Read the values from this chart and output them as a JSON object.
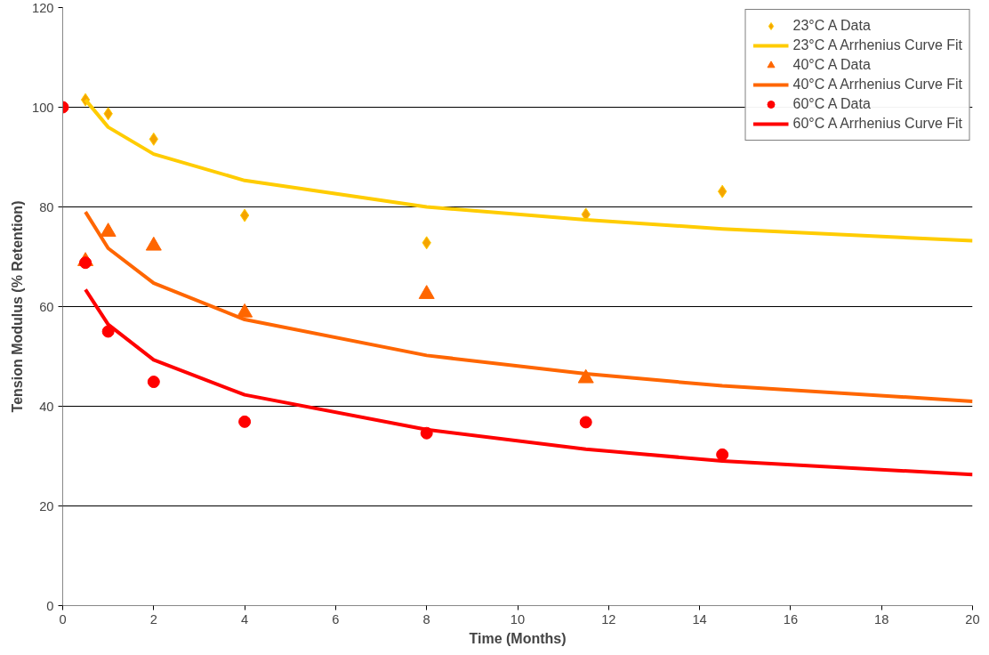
{
  "chart_data": {
    "type": "scatter",
    "xlabel": "Time (Months)",
    "ylabel": "Tension Modulus (% Retention)",
    "xlim": [
      0,
      20
    ],
    "xticks": [
      0,
      2,
      4,
      6,
      8,
      10,
      12,
      14,
      16,
      18,
      20
    ],
    "ylim": [
      0,
      120
    ],
    "yticks": [
      0,
      20,
      40,
      60,
      80,
      100,
      120
    ],
    "grid": "y",
    "legend": "top right",
    "series": [
      {
        "name": "23°C A Data",
        "marker": "diamond",
        "color": "#f5a400",
        "x": [
          0.5,
          1,
          2,
          4,
          8,
          11.5,
          14.5
        ],
        "values": [
          101.5,
          98.7,
          93.6,
          78.3,
          72.8,
          78.5,
          83.1
        ]
      },
      {
        "name": "23°C A Arrhenius Curve Fit",
        "type": "line",
        "marker": "none",
        "color": "#ffcc00",
        "x": [
          0.5,
          1,
          2,
          4,
          8,
          11.5,
          14.5,
          20
        ],
        "values": [
          101.5,
          96,
          90.6,
          85.3,
          80,
          77.4,
          75.6,
          73.2
        ]
      },
      {
        "name": "40°C A Data",
        "marker": "triangle",
        "color": "#ff6600",
        "x": [
          0.5,
          1,
          2,
          4,
          8,
          11.5
        ],
        "values": [
          69.1,
          75,
          72.2,
          58.8,
          62.5,
          45.6
        ]
      },
      {
        "name": "40°C A Arrhenius Curve Fit",
        "type": "line",
        "marker": "none",
        "color": "#ff6600",
        "x": [
          0.5,
          1,
          2,
          4,
          8,
          11.5,
          14.5,
          20
        ],
        "values": [
          79,
          71.7,
          64.7,
          57.4,
          50.2,
          46.5,
          44.1,
          41
        ]
      },
      {
        "name": "60°C A Data",
        "marker": "circle",
        "color": "#ff0000",
        "x": [
          0,
          0.5,
          1,
          2,
          4,
          8,
          11.5,
          14.5
        ],
        "values": [
          100,
          68.8,
          55,
          44.9,
          36.9,
          34.6,
          36.8,
          30.3
        ]
      },
      {
        "name": "60°C A Arrhenius Curve Fit",
        "type": "line",
        "marker": "none",
        "color": "#ff0000",
        "x": [
          0.5,
          1,
          2,
          4,
          8,
          11.5,
          14.5,
          20
        ],
        "values": [
          63.4,
          56.4,
          49.3,
          42.3,
          35.3,
          31.4,
          29,
          26.3
        ]
      }
    ]
  }
}
